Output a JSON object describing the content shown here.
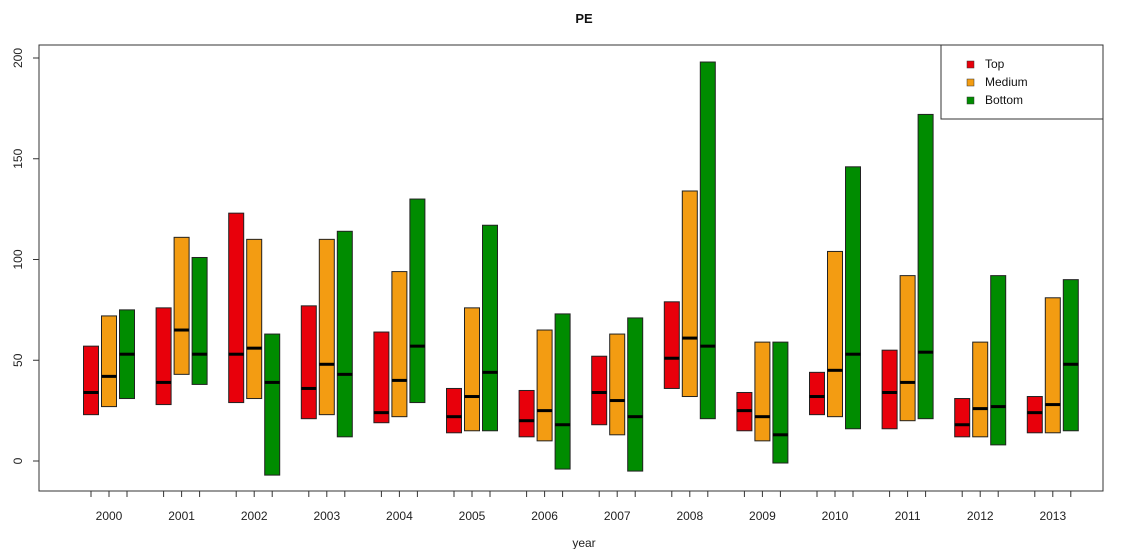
{
  "chart_data": {
    "type": "box",
    "title": "PE",
    "xlabel": "year",
    "ylabel": "",
    "ylim": [
      -15,
      205
    ],
    "yticks": [
      0,
      50,
      100,
      150,
      200
    ],
    "categories": [
      "2000",
      "2001",
      "2002",
      "2003",
      "2004",
      "2005",
      "2006",
      "2007",
      "2008",
      "2009",
      "2010",
      "2011",
      "2012",
      "2013"
    ],
    "legend_position": "top-right",
    "series": [
      {
        "name": "Top",
        "color": "#e8000b",
        "boxes": [
          {
            "low": 23,
            "median": 34,
            "high": 57
          },
          {
            "low": 28,
            "median": 39,
            "high": 76
          },
          {
            "low": 29,
            "median": 53,
            "high": 123
          },
          {
            "low": 21,
            "median": 36,
            "high": 77
          },
          {
            "low": 19,
            "median": 24,
            "high": 64
          },
          {
            "low": 14,
            "median": 22,
            "high": 36
          },
          {
            "low": 12,
            "median": 20,
            "high": 35
          },
          {
            "low": 18,
            "median": 34,
            "high": 52
          },
          {
            "low": 36,
            "median": 51,
            "high": 79
          },
          {
            "low": 15,
            "median": 25,
            "high": 34
          },
          {
            "low": 23,
            "median": 32,
            "high": 44
          },
          {
            "low": 16,
            "median": 34,
            "high": 55
          },
          {
            "low": 12,
            "median": 18,
            "high": 31
          },
          {
            "low": 14,
            "median": 24,
            "high": 32
          }
        ]
      },
      {
        "name": "Medium",
        "color": "#f39c12",
        "boxes": [
          {
            "low": 27,
            "median": 42,
            "high": 72
          },
          {
            "low": 43,
            "median": 65,
            "high": 111
          },
          {
            "low": 31,
            "median": 56,
            "high": 110
          },
          {
            "low": 23,
            "median": 48,
            "high": 110
          },
          {
            "low": 22,
            "median": 40,
            "high": 94
          },
          {
            "low": 15,
            "median": 32,
            "high": 76
          },
          {
            "low": 10,
            "median": 25,
            "high": 65
          },
          {
            "low": 13,
            "median": 30,
            "high": 63
          },
          {
            "low": 32,
            "median": 61,
            "high": 134
          },
          {
            "low": 10,
            "median": 22,
            "high": 59
          },
          {
            "low": 22,
            "median": 45,
            "high": 104
          },
          {
            "low": 20,
            "median": 39,
            "high": 92
          },
          {
            "low": 12,
            "median": 26,
            "high": 59
          },
          {
            "low": 14,
            "median": 28,
            "high": 81
          }
        ]
      },
      {
        "name": "Bottom",
        "color": "#008c00",
        "boxes": [
          {
            "low": 31,
            "median": 53,
            "high": 75
          },
          {
            "low": 38,
            "median": 53,
            "high": 101
          },
          {
            "low": -7,
            "median": 39,
            "high": 63
          },
          {
            "low": 12,
            "median": 43,
            "high": 114
          },
          {
            "low": 29,
            "median": 57,
            "high": 130
          },
          {
            "low": 15,
            "median": 44,
            "high": 117
          },
          {
            "low": -4,
            "median": 18,
            "high": 73
          },
          {
            "low": -5,
            "median": 22,
            "high": 71
          },
          {
            "low": 21,
            "median": 57,
            "high": 198
          },
          {
            "low": -1,
            "median": 13,
            "high": 59
          },
          {
            "low": 16,
            "median": 53,
            "high": 146
          },
          {
            "low": 21,
            "median": 54,
            "high": 172
          },
          {
            "low": 8,
            "median": 27,
            "high": 92
          },
          {
            "low": 15,
            "median": 48,
            "high": 90
          }
        ]
      }
    ]
  }
}
